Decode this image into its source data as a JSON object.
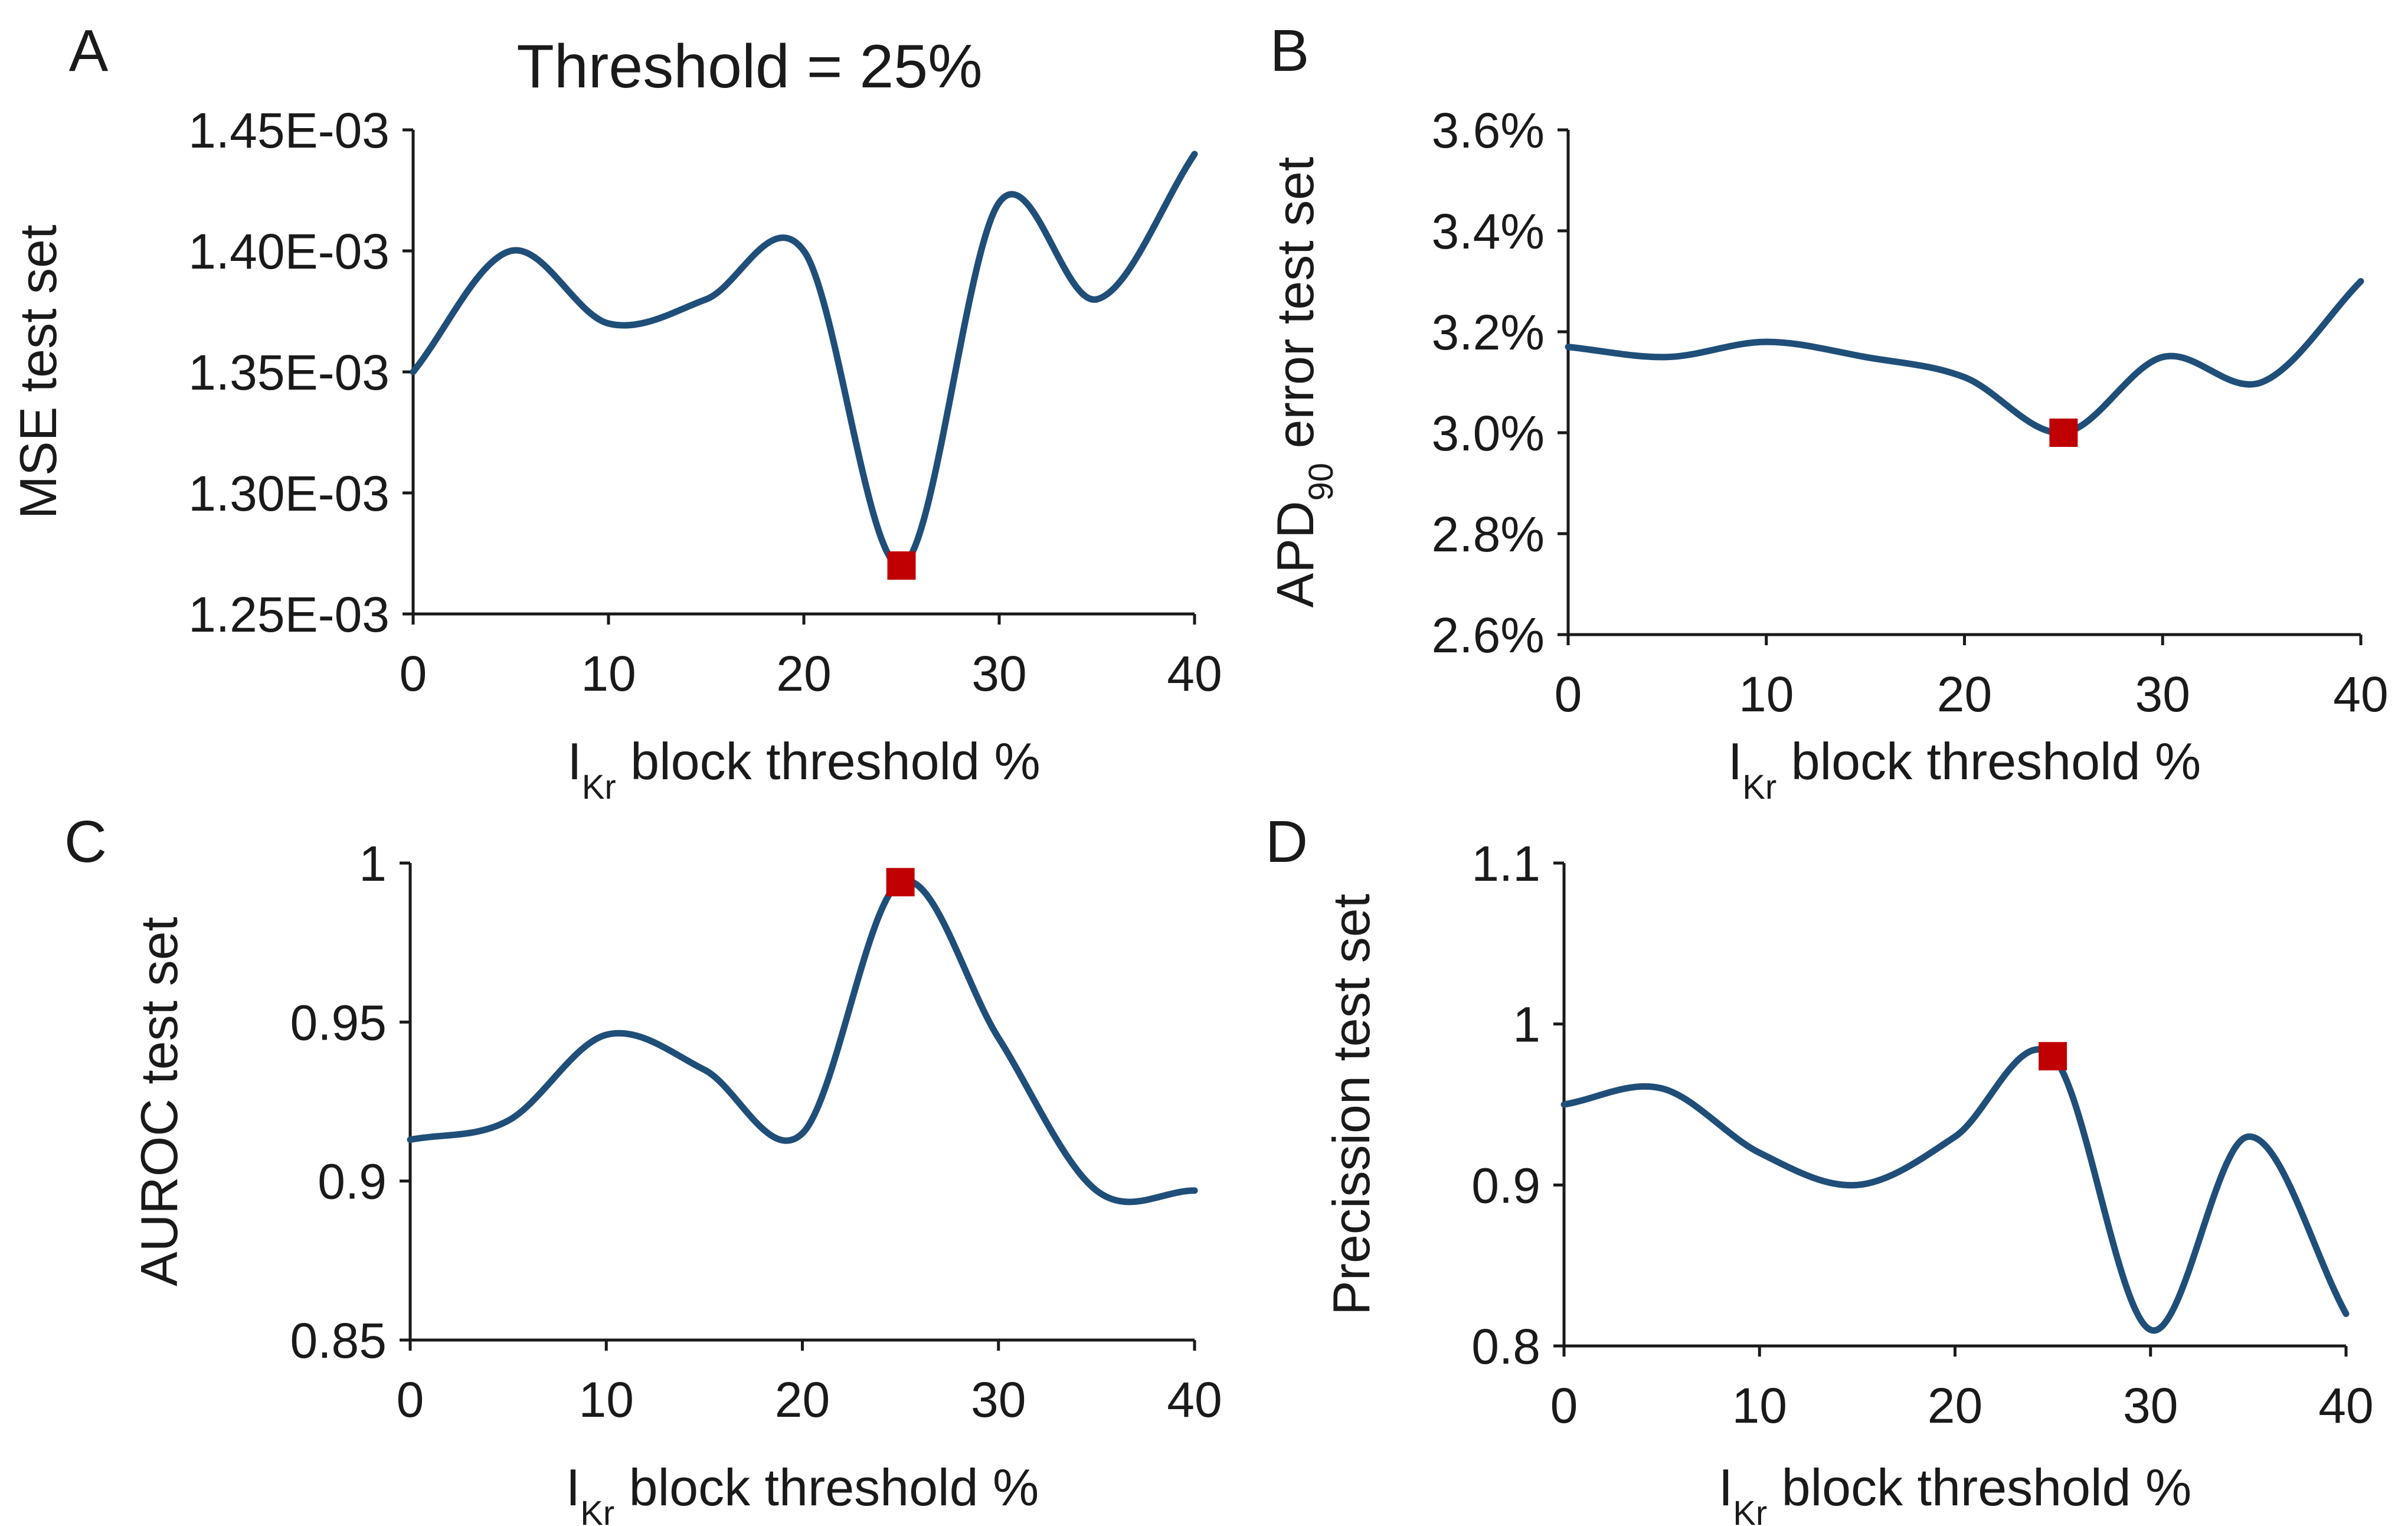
{
  "figure": {
    "annotation": {
      "text": "Threshold = 25%",
      "color": "#c00000"
    }
  },
  "colors": {
    "line": "#1f4e79",
    "marker": "#c00000",
    "axis": "#1a1a1a"
  },
  "chart_data": [
    {
      "panel": "A",
      "type": "line",
      "x": [
        0,
        5,
        10,
        15,
        20,
        25,
        30,
        35,
        40
      ],
      "y": [
        0.00135,
        0.0014,
        0.00137,
        0.00138,
        0.0014,
        0.00127,
        0.00142,
        0.00138,
        0.00144
      ],
      "highlight": {
        "x": 25,
        "y": 0.00127
      },
      "xlim": [
        0,
        40
      ],
      "ylim": [
        0.00125,
        0.00145
      ],
      "xticks": [
        0,
        10,
        20,
        30,
        40
      ],
      "yticks": [
        0.00125,
        0.0013,
        0.00135,
        0.0014,
        0.00145
      ],
      "xticklabels": [
        "0",
        "10",
        "20",
        "30",
        "40"
      ],
      "yticklabels": [
        "1.25E-03",
        "1.30E-03",
        "1.35E-03",
        "1.40E-03",
        "1.45E-03"
      ],
      "ylabel": "MSE test set",
      "xlabel": {
        "prefix": "I",
        "sub": "Kr",
        "suffix": " block threshold %"
      }
    },
    {
      "panel": "B",
      "type": "line",
      "x": [
        0,
        5,
        10,
        15,
        20,
        25,
        30,
        35,
        40
      ],
      "y": [
        3.17,
        3.15,
        3.18,
        3.15,
        3.11,
        3.0,
        3.15,
        3.1,
        3.3
      ],
      "highlight": {
        "x": 25,
        "y": 3.0
      },
      "xlim": [
        0,
        40
      ],
      "ylim": [
        2.6,
        3.6
      ],
      "xticks": [
        0,
        10,
        20,
        30,
        40
      ],
      "yticks": [
        2.6,
        2.8,
        3.0,
        3.2,
        3.4,
        3.6
      ],
      "xticklabels": [
        "0",
        "10",
        "20",
        "30",
        "40"
      ],
      "yticklabels": [
        "2.6%",
        "2.8%",
        "3.0%",
        "3.2%",
        "3.4%",
        "3.6%"
      ],
      "ylabel": {
        "prefix": "APD",
        "sub": "90",
        "suffix": " error test set"
      },
      "xlabel": {
        "prefix": "I",
        "sub": "Kr",
        "suffix": " block threshold %"
      }
    },
    {
      "panel": "C",
      "type": "line",
      "x": [
        0,
        5,
        10,
        15,
        20,
        25,
        30,
        35,
        40
      ],
      "y": [
        0.913,
        0.919,
        0.946,
        0.935,
        0.915,
        0.994,
        0.945,
        0.897,
        0.897
      ],
      "highlight": {
        "x": 25,
        "y": 0.994
      },
      "xlim": [
        0,
        40
      ],
      "ylim": [
        0.85,
        1.0
      ],
      "xticks": [
        0,
        10,
        20,
        30,
        40
      ],
      "yticks": [
        0.85,
        0.9,
        0.95,
        1.0
      ],
      "xticklabels": [
        "0",
        "10",
        "20",
        "30",
        "40"
      ],
      "yticklabels": [
        "0.85",
        "0.9",
        "0.95",
        "1"
      ],
      "ylabel": "AUROC test set",
      "xlabel": {
        "prefix": "I",
        "sub": "Kr",
        "suffix": " block threshold %"
      }
    },
    {
      "panel": "D",
      "type": "line",
      "x": [
        0,
        5,
        10,
        15,
        20,
        25,
        30,
        35,
        40
      ],
      "y": [
        0.95,
        0.96,
        0.92,
        0.9,
        0.93,
        0.98,
        0.81,
        0.93,
        0.82
      ],
      "highlight": {
        "x": 25,
        "y": 0.98
      },
      "xlim": [
        0,
        40
      ],
      "ylim": [
        0.8,
        1.1
      ],
      "xticks": [
        0,
        10,
        20,
        30,
        40
      ],
      "yticks": [
        0.8,
        0.9,
        1.0,
        1.1
      ],
      "xticklabels": [
        "0",
        "10",
        "20",
        "30",
        "40"
      ],
      "yticklabels": [
        "0.8",
        "0.9",
        "1",
        "1.1"
      ],
      "ylabel": "Precission test set",
      "xlabel": {
        "prefix": "I",
        "sub": "Kr",
        "suffix": " block threshold %"
      }
    }
  ]
}
